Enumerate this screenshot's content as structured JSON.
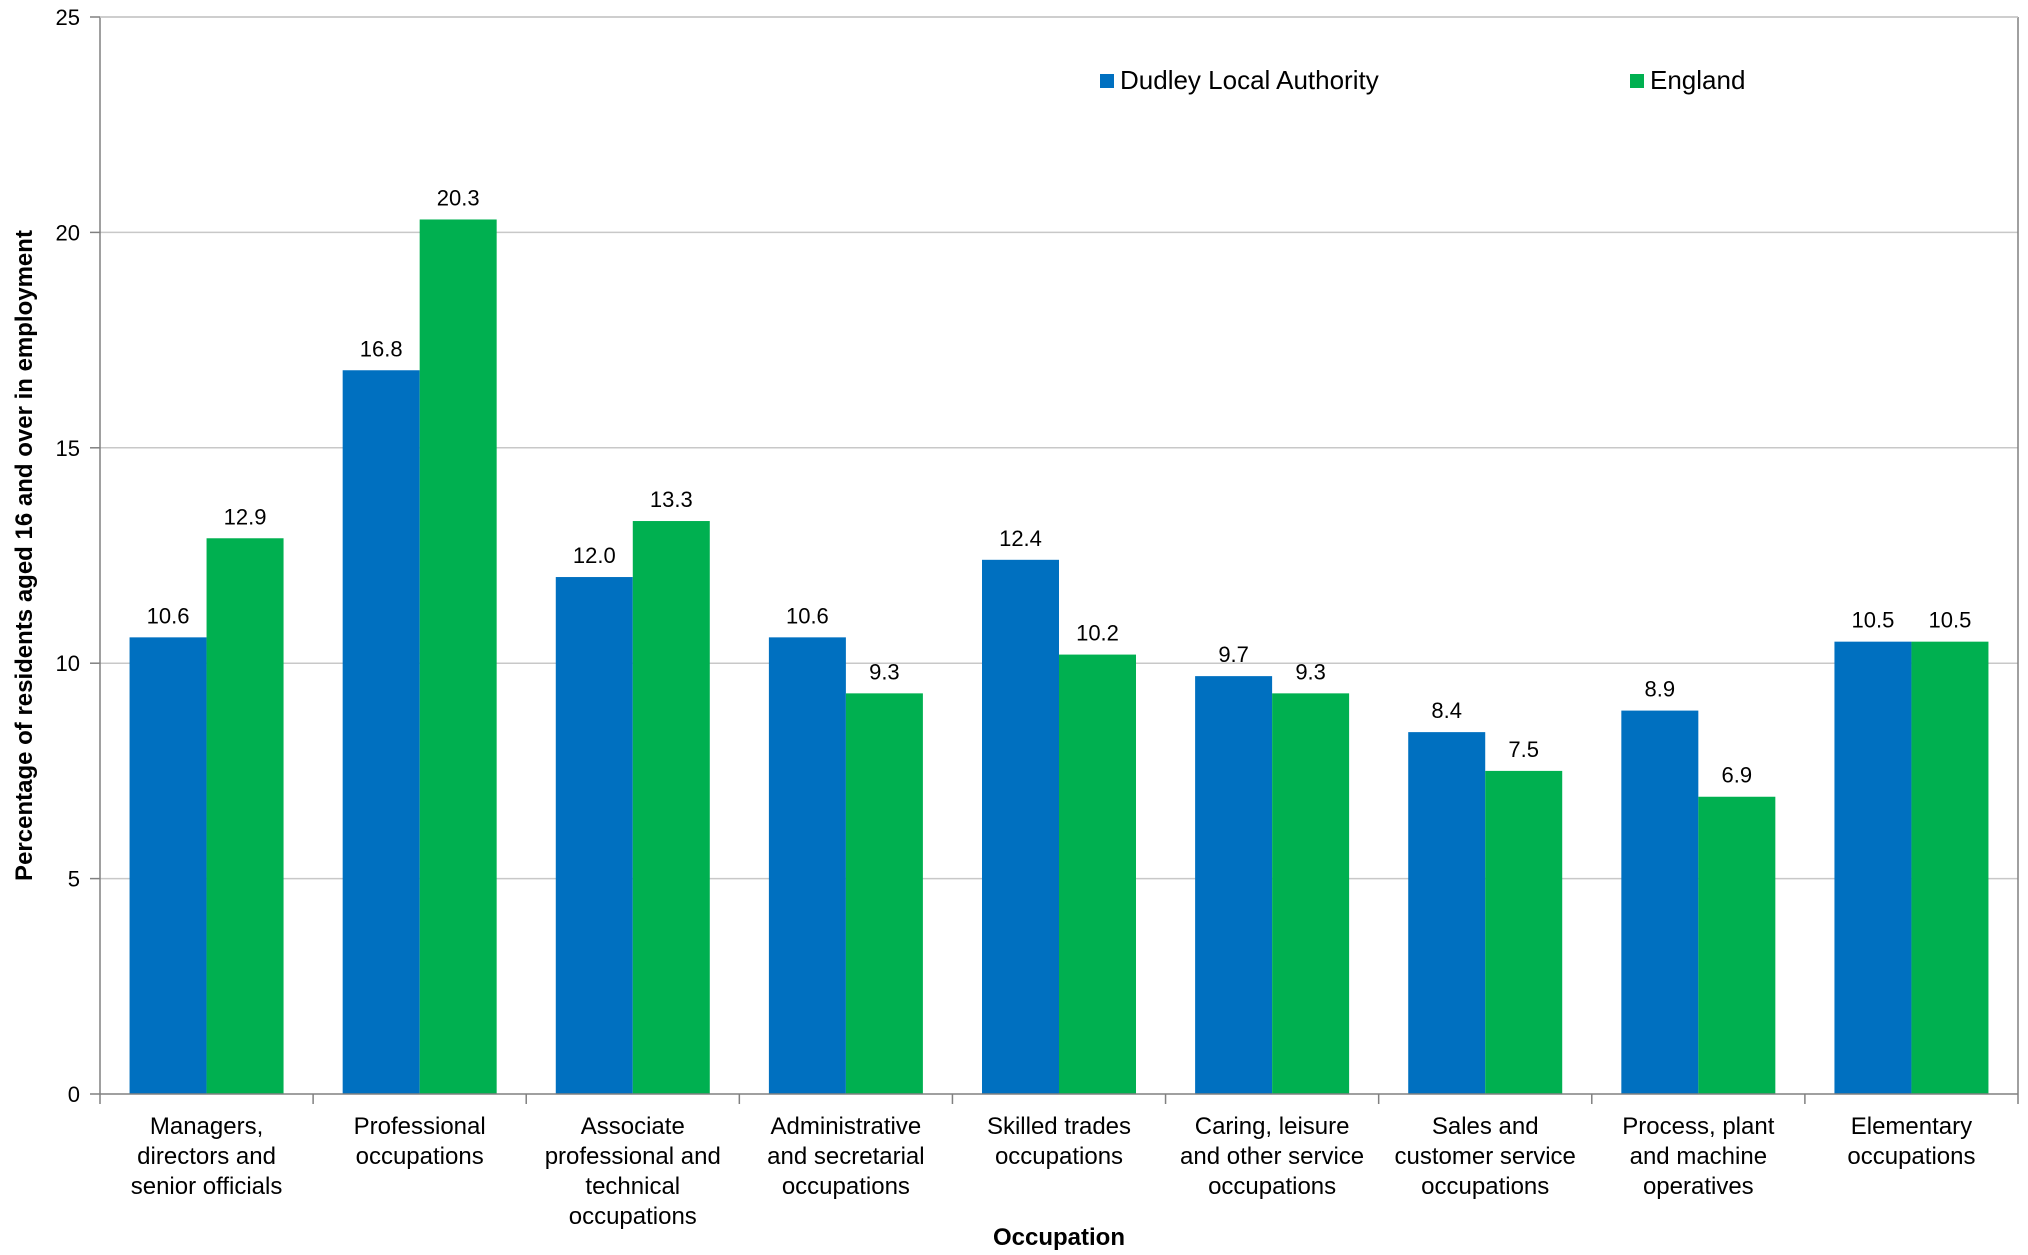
{
  "chart_data": {
    "type": "bar",
    "title": "",
    "xlabel": "Occupation",
    "ylabel": "Percentage of residents aged 16 and over in employment",
    "ylim": [
      0,
      25
    ],
    "yticks": [
      0,
      5,
      10,
      15,
      20,
      25
    ],
    "grid": true,
    "legend_position": "top-right",
    "categories": [
      [
        "Managers,",
        "directors and",
        "senior officials"
      ],
      [
        "Professional",
        "occupations"
      ],
      [
        "Associate",
        "professional and",
        "technical",
        "occupations"
      ],
      [
        "Administrative",
        "and secretarial",
        "occupations"
      ],
      [
        "Skilled trades",
        "occupations"
      ],
      [
        "Caring, leisure",
        "and other service",
        "occupations"
      ],
      [
        "Sales and",
        "customer service",
        "occupations"
      ],
      [
        "Process, plant",
        "and machine",
        "operatives"
      ],
      [
        "Elementary",
        "occupations"
      ]
    ],
    "series": [
      {
        "name": "Dudley Local Authority",
        "color": "#0070C0",
        "values": [
          10.6,
          16.8,
          12.0,
          10.6,
          12.4,
          9.7,
          8.4,
          8.9,
          10.5
        ],
        "labels": [
          "10.6",
          "16.8",
          "12.0",
          "10.6",
          "12.4",
          "9.7",
          "8.4",
          "8.9",
          "10.5"
        ]
      },
      {
        "name": "England",
        "color": "#00B050",
        "values": [
          12.9,
          20.3,
          13.3,
          9.3,
          10.2,
          9.3,
          7.5,
          6.9,
          10.5
        ],
        "labels": [
          "12.9",
          "20.3",
          "13.3",
          "9.3",
          "10.2",
          "9.3",
          "7.5",
          "6.9",
          "10.5"
        ]
      }
    ]
  }
}
